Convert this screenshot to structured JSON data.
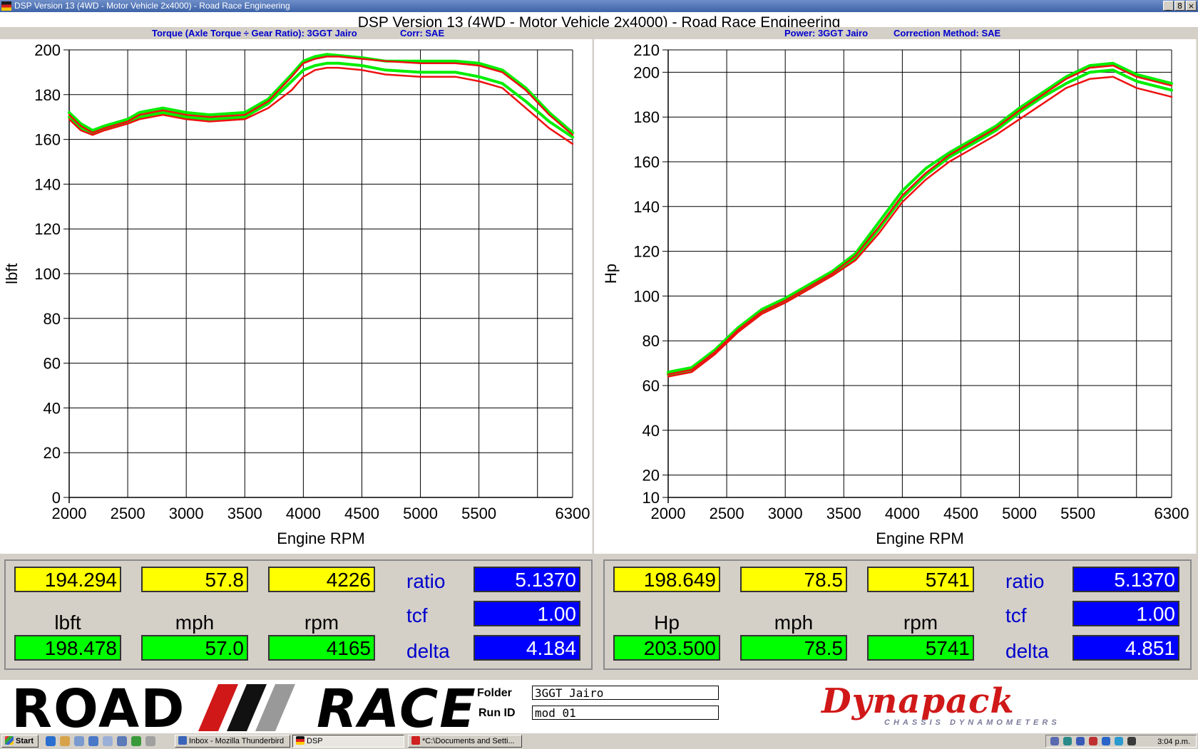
{
  "window": {
    "title": "DSP Version 13 (4WD - Motor Vehicle 2x4000) - Road Race Engineering",
    "buttons": [
      "_",
      "8",
      "×"
    ]
  },
  "main_title": "DSP Version 13 (4WD - Motor Vehicle 2x4000) - Road Race Engineering",
  "subtitles": {
    "left_a": "Torque (Axle Torque ÷ Gear Ratio): 3GGT Jairo",
    "left_b": "Corr: SAE",
    "right_a": "Power: 3GGT Jairo",
    "right_b": "Correction Method: SAE"
  },
  "colors": {
    "green": "#00ee00",
    "red": "#ee1010",
    "yellow_box": "#ffff00",
    "green_box": "#00ff00",
    "blue_box": "#0000ff"
  },
  "chart_data": [
    {
      "type": "line",
      "xlabel": "Engine RPM",
      "ylabel": "lbft",
      "xlim": [
        2000,
        6300
      ],
      "ylim": [
        0,
        200
      ],
      "xticks": [
        2000,
        2500,
        3000,
        3500,
        4000,
        4500,
        5000,
        5500,
        6300
      ],
      "yticks": [
        0,
        20,
        40,
        60,
        80,
        100,
        120,
        140,
        160,
        180,
        200
      ],
      "grid": true,
      "series": [
        {
          "color": "green",
          "x": [
            2000,
            2100,
            2200,
            2300,
            2500,
            2600,
            2800,
            3000,
            3200,
            3500,
            3700,
            3900,
            4000,
            4100,
            4200,
            4300,
            4500,
            4700,
            5000,
            5300,
            5500,
            5700,
            5900,
            6100,
            6300
          ],
          "y": [
            172,
            167,
            164,
            166,
            169,
            172,
            174,
            172,
            171,
            172,
            178,
            189,
            195,
            197,
            198,
            197.5,
            196.5,
            195,
            195,
            195,
            194,
            191,
            183,
            172,
            163
          ]
        },
        {
          "color": "green",
          "x": [
            2000,
            2100,
            2200,
            2300,
            2500,
            2600,
            2800,
            3000,
            3200,
            3500,
            3700,
            3900,
            4000,
            4100,
            4200,
            4300,
            4500,
            4700,
            5000,
            5300,
            5500,
            5700,
            5900,
            6100,
            6300
          ],
          "y": [
            170,
            165,
            163,
            165,
            168,
            170,
            172,
            170,
            169,
            170,
            176,
            186,
            191,
            193,
            194,
            194,
            193,
            191,
            190,
            190,
            188,
            185,
            177,
            168,
            161
          ]
        },
        {
          "color": "red",
          "x": [
            2000,
            2100,
            2200,
            2300,
            2500,
            2600,
            2800,
            3000,
            3200,
            3500,
            3700,
            3900,
            4000,
            4100,
            4200,
            4300,
            4500,
            4700,
            5000,
            5300,
            5500,
            5700,
            5900,
            6100,
            6300
          ],
          "y": [
            169,
            164,
            162,
            164,
            167,
            169,
            171,
            169,
            168,
            169,
            174,
            182,
            188,
            191,
            192,
            192,
            191,
            189,
            188,
            188,
            186,
            183,
            174,
            165,
            158
          ]
        },
        {
          "color": "red",
          "x": [
            2000,
            2100,
            2200,
            2300,
            2500,
            2600,
            2800,
            3000,
            3200,
            3500,
            3700,
            3900,
            4000,
            4100,
            4200,
            4300,
            4500,
            4700,
            5000,
            5300,
            5500,
            5700,
            5900,
            6100,
            6300
          ],
          "y": [
            171,
            166,
            163,
            165,
            168,
            171,
            173,
            171,
            170,
            171,
            177,
            188,
            194,
            196,
            197,
            197,
            196,
            195,
            194,
            194,
            193,
            190,
            182,
            171,
            162
          ]
        }
      ]
    },
    {
      "type": "line",
      "xlabel": "Engine RPM",
      "ylabel": "Hp",
      "xlim": [
        2000,
        6300
      ],
      "ylim": [
        10,
        210
      ],
      "xticks": [
        2000,
        2500,
        3000,
        3500,
        4000,
        4500,
        5000,
        5500,
        6300
      ],
      "yticks": [
        10,
        20,
        40,
        60,
        80,
        100,
        120,
        140,
        160,
        180,
        200,
        210
      ],
      "grid": true,
      "series": [
        {
          "color": "green",
          "x": [
            2000,
            2200,
            2400,
            2600,
            2800,
            3000,
            3200,
            3400,
            3600,
            3800,
            4000,
            4200,
            4400,
            4600,
            4800,
            5000,
            5200,
            5400,
            5600,
            5800,
            6000,
            6300
          ],
          "y": [
            66,
            68,
            76,
            86,
            94,
            99,
            105,
            111,
            119,
            133,
            147,
            157,
            164,
            170,
            176,
            184,
            191,
            198,
            203,
            204,
            199,
            195
          ]
        },
        {
          "color": "green",
          "x": [
            2000,
            2200,
            2400,
            2600,
            2800,
            3000,
            3200,
            3400,
            3600,
            3800,
            4000,
            4200,
            4400,
            4600,
            4800,
            5000,
            5200,
            5400,
            5600,
            5800,
            6000,
            6300
          ],
          "y": [
            65,
            67,
            75,
            85,
            93,
            98,
            104,
            110,
            117,
            130,
            144,
            154,
            162,
            168,
            174,
            182,
            189,
            195,
            200,
            201,
            196,
            192
          ]
        },
        {
          "color": "red",
          "x": [
            2000,
            2200,
            2400,
            2600,
            2800,
            3000,
            3200,
            3400,
            3600,
            3800,
            4000,
            4200,
            4400,
            4600,
            4800,
            5000,
            5200,
            5400,
            5600,
            5800,
            6000,
            6300
          ],
          "y": [
            64,
            66,
            74,
            84,
            92,
            97,
            103,
            109,
            116,
            128,
            142,
            152,
            160,
            166,
            172,
            179,
            186,
            193,
            197,
            198,
            193,
            189
          ]
        },
        {
          "color": "red",
          "x": [
            2000,
            2200,
            2400,
            2600,
            2800,
            3000,
            3200,
            3400,
            3600,
            3800,
            4000,
            4200,
            4400,
            4600,
            4800,
            5000,
            5200,
            5400,
            5600,
            5800,
            6000,
            6300
          ],
          "y": [
            65,
            67,
            75,
            85,
            93,
            98,
            104,
            110,
            118,
            131,
            145,
            155,
            163,
            169,
            175,
            183,
            190,
            197,
            202,
            203,
            198,
            194
          ]
        }
      ]
    }
  ],
  "readouts": [
    {
      "yellow": [
        "194.294",
        "57.8",
        "4226"
      ],
      "units": [
        "lbft",
        "mph",
        "rpm"
      ],
      "green": [
        "198.478",
        "57.0",
        "4165"
      ],
      "params": [
        {
          "label": "ratio",
          "value": "5.1370"
        },
        {
          "label": "tcf",
          "value": "1.00"
        },
        {
          "label": "delta",
          "value": "4.184"
        }
      ]
    },
    {
      "yellow": [
        "198.649",
        "78.5",
        "5741"
      ],
      "units": [
        "Hp",
        "mph",
        "rpm"
      ],
      "green": [
        "203.500",
        "78.5",
        "5741"
      ],
      "params": [
        {
          "label": "ratio",
          "value": "5.1370"
        },
        {
          "label": "tcf",
          "value": "1.00"
        },
        {
          "label": "delta",
          "value": "4.851"
        }
      ]
    }
  ],
  "brand": {
    "road": "ROAD",
    "race": "RACE",
    "folder_label": "Folder",
    "folder_value": "3GGT Jairo",
    "runid_label": "Run ID",
    "runid_value": "mod 01",
    "dynapack": "Dynapack",
    "dynapack_sub": "CHASSIS DYNAMOMETERS"
  },
  "taskbar": {
    "start": "Start",
    "items": [
      "Inbox - Mozilla Thunderbird",
      "DSP",
      "*C:\\Documents and Setti..."
    ],
    "clock": "3:04 p.m."
  }
}
